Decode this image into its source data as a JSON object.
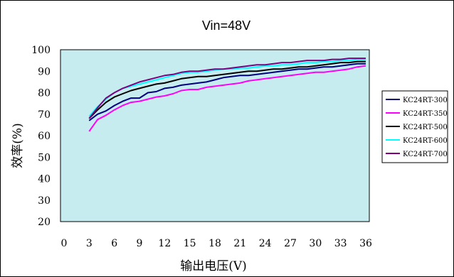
{
  "chart_data": {
    "type": "line",
    "title": "Vin=48V",
    "xlabel": "输出电压(V)",
    "ylabel": "效率(%)",
    "xlim": [
      0,
      36
    ],
    "ylim": [
      20,
      100
    ],
    "xticks": [
      "0",
      "3",
      "6",
      "9",
      "12",
      "15",
      "18",
      "21",
      "24",
      "27",
      "30",
      "33",
      "36"
    ],
    "yticks": [
      "20",
      "30",
      "40",
      "50",
      "60",
      "70",
      "80",
      "90",
      "100"
    ],
    "grid": false,
    "plot_background": "#C7ECEF",
    "legend_position": "right",
    "x": [
      3,
      4,
      5,
      6,
      7,
      8,
      9,
      10,
      11,
      12,
      13,
      14,
      15,
      16,
      17,
      18,
      19,
      20,
      21,
      22,
      23,
      24,
      25,
      26,
      27,
      28,
      29,
      30,
      31,
      32,
      33,
      34,
      35,
      36
    ],
    "series": [
      {
        "name": "KC24RT-300",
        "color": "#000080",
        "values": [
          67,
          70,
          71.5,
          74,
          76,
          77.5,
          77.5,
          80,
          80.5,
          82,
          82.5,
          83.5,
          84,
          84.5,
          85,
          86,
          87,
          87.5,
          88,
          88,
          88.5,
          89,
          89.5,
          90,
          90.5,
          91,
          91,
          91.5,
          92,
          92,
          92.5,
          93,
          93.5,
          93.5
        ]
      },
      {
        "name": "KC24RT-350",
        "color": "#FF00FF",
        "values": [
          62,
          67.5,
          69.5,
          72,
          74,
          75.5,
          76,
          77,
          78,
          78.5,
          79.5,
          81,
          81.5,
          81.5,
          82.5,
          83,
          83.5,
          84,
          84.5,
          85.5,
          86,
          86.5,
          87,
          87.5,
          88,
          88.5,
          89,
          89.5,
          89.5,
          90,
          90.5,
          91,
          92,
          92.5
        ]
      },
      {
        "name": "KC24RT-500",
        "color": "#000000",
        "values": [
          68,
          72,
          75.5,
          78,
          79.5,
          81,
          82,
          83,
          84,
          84.5,
          85.5,
          86.5,
          87,
          87.5,
          87.5,
          88,
          88.5,
          89,
          89.5,
          90,
          90,
          90.5,
          91,
          91,
          91.5,
          92,
          92,
          92.5,
          93,
          93.5,
          94,
          94,
          94.5,
          94.5
        ]
      },
      {
        "name": "KC24RT-600",
        "color": "#00FFFF",
        "values": [
          69,
          73.5,
          77,
          80,
          82,
          83,
          84,
          85,
          86,
          87,
          88,
          89,
          89.5,
          89.5,
          90,
          90.5,
          91,
          91,
          91.5,
          91.5,
          92,
          92.5,
          92.5,
          93,
          93,
          93.5,
          94,
          94,
          94.5,
          94.5,
          95,
          95,
          95.5,
          95.5
        ]
      },
      {
        "name": "KC24RT-700",
        "color": "#800080",
        "values": [
          68,
          73,
          77.5,
          80,
          82,
          83.5,
          85,
          86,
          87,
          88,
          88.5,
          89.5,
          90,
          90,
          90.5,
          91,
          91,
          91.5,
          92,
          92.5,
          93,
          93,
          93.5,
          94,
          94,
          94.5,
          95,
          95,
          95,
          95.5,
          95.5,
          96,
          96,
          96
        ]
      }
    ]
  }
}
